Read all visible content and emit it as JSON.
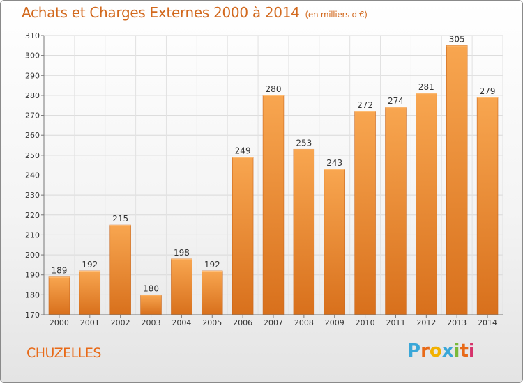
{
  "title": "Achats et Charges Externes 2000 à 2014",
  "title_unit": "(en milliers d'€)",
  "city": "CHUZELLES",
  "logo": {
    "letters": [
      "P",
      "r",
      "o",
      "x",
      "i",
      "t",
      "i"
    ],
    "colors": [
      "#3aa7d8",
      "#e86a18",
      "#f2b100",
      "#3aa7d8",
      "#7ab93a",
      "#e86a18",
      "#d6336c"
    ]
  },
  "chart_data": {
    "type": "bar",
    "categories": [
      "2000",
      "2001",
      "2002",
      "2003",
      "2004",
      "2005",
      "2006",
      "2007",
      "2008",
      "2009",
      "2010",
      "2011",
      "2012",
      "2013",
      "2014"
    ],
    "values": [
      189,
      192,
      215,
      180,
      198,
      192,
      249,
      280,
      253,
      243,
      272,
      274,
      281,
      305,
      279
    ],
    "ylim": [
      170,
      310
    ],
    "yticks": [
      170,
      180,
      190,
      200,
      210,
      220,
      230,
      240,
      250,
      260,
      270,
      280,
      290,
      300,
      310
    ],
    "grid": true,
    "bar_color": "#e87f2a"
  }
}
